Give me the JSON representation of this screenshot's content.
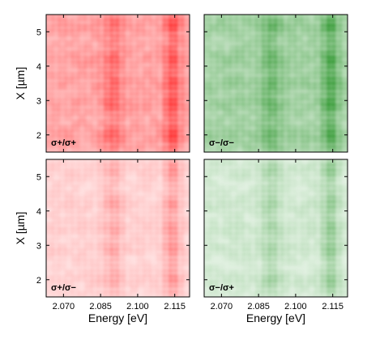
{
  "chart_data": [
    {
      "type": "heatmap",
      "panel": "top-left",
      "color": "#ff0000",
      "polarization_label": "σ+/σ+",
      "intensity_scale": "strong",
      "ylabel": "X [µm]",
      "ylim": [
        1.5,
        5.5
      ],
      "xlim": [
        2.063,
        2.121
      ],
      "yticks": [
        "2",
        "3",
        "4",
        "5"
      ],
      "peaks_x_eV": [
        2.09,
        2.114
      ],
      "peaks_y_um": [
        2.0,
        2.9,
        3.5,
        4.2,
        5.2
      ]
    },
    {
      "type": "heatmap",
      "panel": "top-right",
      "color": "#008000",
      "polarization_label": "σ−/σ−",
      "intensity_scale": "strong",
      "ylim": [
        1.5,
        5.5
      ],
      "xlim": [
        2.063,
        2.121
      ],
      "peaks_x_eV": [
        2.09,
        2.114
      ],
      "peaks_y_um": [
        2.0,
        2.9,
        3.5,
        4.2,
        5.2
      ]
    },
    {
      "type": "heatmap",
      "panel": "bottom-left",
      "color": "#ff0000",
      "polarization_label": "σ+/σ−",
      "intensity_scale": "weak",
      "xlabel": "Energy [eV]",
      "ylabel": "X [µm]",
      "ylim": [
        1.5,
        5.5
      ],
      "xlim": [
        2.063,
        2.121
      ],
      "xticks": [
        "2.070",
        "2.085",
        "2.100",
        "2.115"
      ],
      "yticks": [
        "2",
        "3",
        "4",
        "5"
      ],
      "peaks_x_eV": [
        2.09,
        2.114
      ],
      "peaks_y_um": [
        2.0,
        2.9,
        3.5,
        4.2,
        5.2
      ]
    },
    {
      "type": "heatmap",
      "panel": "bottom-right",
      "color": "#008000",
      "polarization_label": "σ−/σ+",
      "intensity_scale": "weak",
      "xlabel": "Energy [eV]",
      "ylim": [
        1.5,
        5.5
      ],
      "xlim": [
        2.063,
        2.121
      ],
      "xticks": [
        "2.070",
        "2.085",
        "2.100",
        "2.115"
      ],
      "peaks_x_eV": [
        2.09,
        2.114
      ],
      "peaks_y_um": [
        2.0,
        2.9,
        3.5,
        4.2,
        5.2
      ]
    }
  ]
}
